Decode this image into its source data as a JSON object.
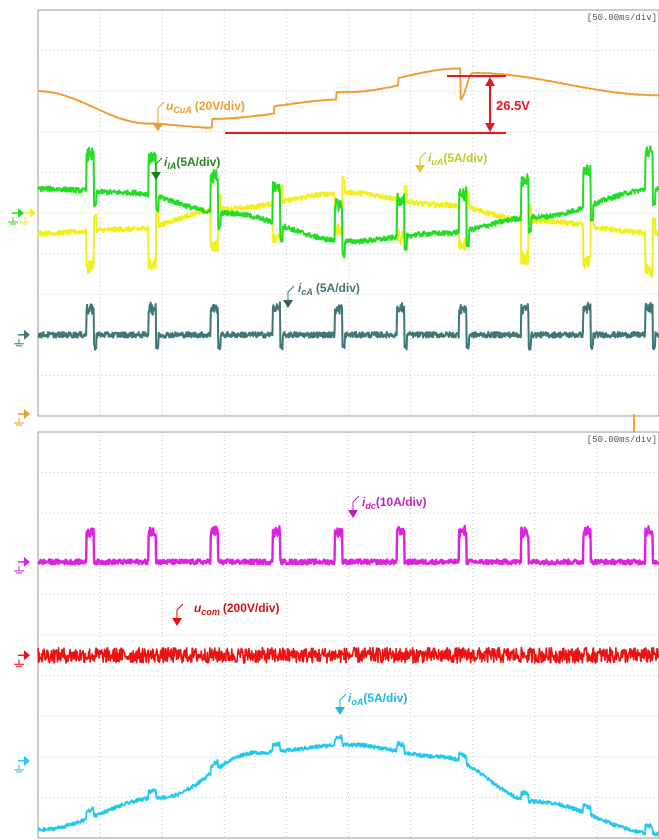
{
  "timebase_top": "[50.00ms/div]",
  "timebase_bottom": "[50.00ms/div]",
  "measurement": {
    "label": "26.5V",
    "value_V": 26.5,
    "color": "#e8171b"
  },
  "channels": {
    "ucA": {
      "sym": "u",
      "sub": "CuA",
      "scale": "(20V/div)",
      "color": "#f39a2d"
    },
    "ilA": {
      "sym": "i",
      "sub": "lA",
      "scale": "(5A/div)",
      "color": "#22dd22"
    },
    "iuA": {
      "sym": "i",
      "sub": "uA",
      "scale": "(5A/div)",
      "color": "#f0f020"
    },
    "icA": {
      "sym": "i",
      "sub": "cA",
      "scale": "(5A/div)",
      "color": "#3f7676"
    },
    "idc": {
      "sym": "i",
      "sub": "dc",
      "scale": "(10A/div)",
      "color": "#e020e0"
    },
    "ucom": {
      "sym": "u",
      "sub": "com",
      "scale": "(200V/div)",
      "color": "#ee1111"
    },
    "ioA": {
      "sym": "i",
      "sub": "oA",
      "scale": "(5A/div)",
      "color": "#22c8f0"
    }
  },
  "chart_data": [
    {
      "type": "line",
      "title": "",
      "x_unit_per_div": "50.00ms/div",
      "x_divisions": 10,
      "y_divisions": 10,
      "grid": true,
      "x_pulses_div": [
        0.8,
        1.8,
        2.8,
        3.8,
        4.8,
        5.8,
        6.8,
        7.8,
        8.8,
        9.8
      ],
      "series": [
        {
          "name": "uCuA (20V/div)",
          "unit": "V",
          "x_div": [
            0,
            1.8,
            2.8,
            5.0,
            6.8,
            7.0,
            10.0
          ],
          "y_div": [
            8.0,
            7.2,
            7.1,
            7.4,
            7.8,
            8.45,
            7.9
          ]
        },
        {
          "name": "ilA (5A/div)",
          "unit": "A",
          "x_div": [
            0,
            1.5,
            3.0,
            5.0,
            6.5,
            8.0,
            10.0
          ],
          "y_div": [
            5.6,
            5.5,
            5.0,
            4.3,
            4.5,
            4.9,
            5.6
          ]
        },
        {
          "name": "iuA (5A/div)",
          "unit": "A",
          "x_div": [
            0,
            1.5,
            3.0,
            5.0,
            6.5,
            8.0,
            10.0
          ],
          "y_div": [
            4.5,
            4.6,
            5.1,
            5.5,
            5.2,
            4.8,
            4.5
          ]
        },
        {
          "name": "icA (5A/div)",
          "unit": "A",
          "x_div": [
            0,
            10.0
          ],
          "y_div": [
            2.0,
            2.0
          ]
        }
      ]
    },
    {
      "type": "line",
      "title": "",
      "x_unit_per_div": "50.00ms/div",
      "x_divisions": 10,
      "y_divisions": 10,
      "grid": true,
      "x_pulses_div": [
        0.8,
        1.8,
        2.8,
        3.8,
        4.8,
        5.8,
        6.8,
        7.8,
        8.8,
        9.8
      ],
      "series": [
        {
          "name": "idc (10A/div)",
          "unit": "A",
          "x_div": [
            0,
            10.0
          ],
          "y_div": [
            6.8,
            6.8
          ]
        },
        {
          "name": "ucom (200V/div)",
          "unit": "V",
          "x_div": [
            0,
            10.0
          ],
          "y_div": [
            4.5,
            4.5
          ]
        },
        {
          "name": "ioA (5A/div)",
          "unit": "A",
          "x_div": [
            0,
            2.0,
            3.5,
            5.0,
            6.5,
            8.0,
            10.0
          ],
          "y_div": [
            0.2,
            1.0,
            2.1,
            2.3,
            2.0,
            0.9,
            0.1
          ]
        }
      ]
    }
  ]
}
